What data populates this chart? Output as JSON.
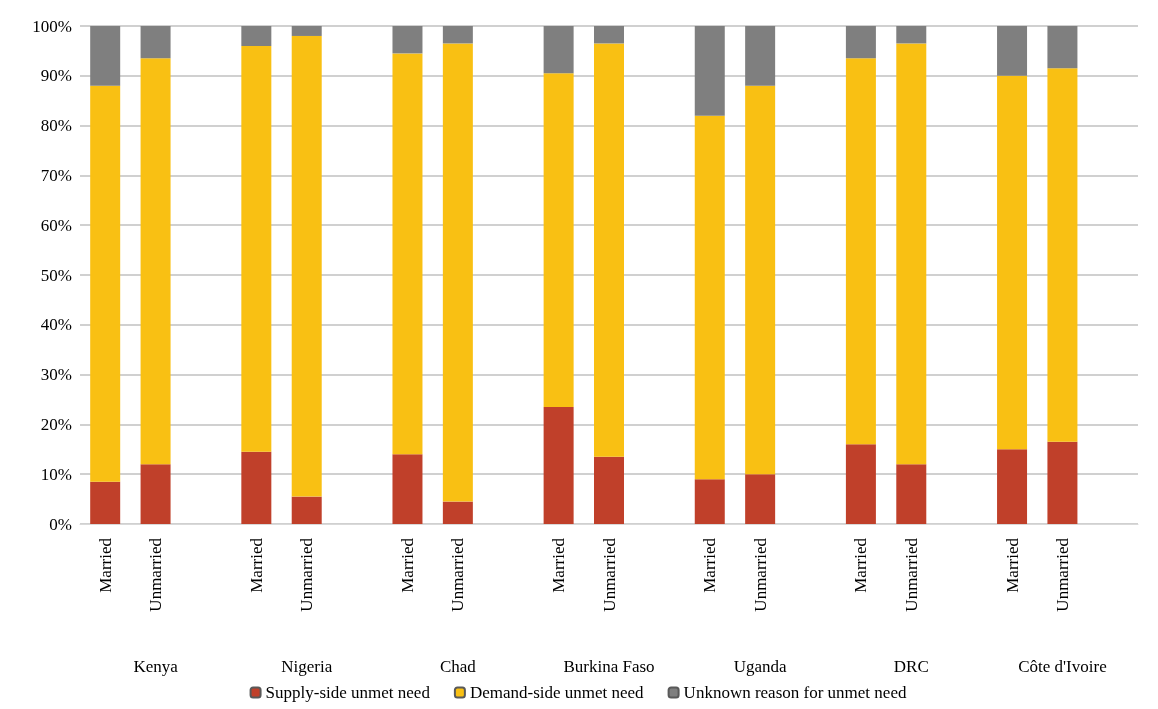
{
  "chart_data": {
    "type": "bar",
    "stacked": true,
    "categories": [
      "Married",
      "Unmarried",
      null,
      "Married",
      "Unmarried",
      null,
      "Married",
      "Unmarried",
      null,
      "Married",
      "Unmarried",
      null,
      "Married",
      "Unmarried",
      null,
      "Married",
      "Unmarried",
      null,
      "Married",
      "Unmarried",
      null
    ],
    "annotations": [
      "Kenya",
      "Nigeria",
      "Chad",
      "Burkina Faso",
      "Uganda",
      "DRC",
      "Côte d'Ivoire"
    ],
    "series": [
      {
        "name": "Supply-side unmet need",
        "color": "#c0402a",
        "values": [
          8.5,
          12,
          null,
          14.5,
          5.5,
          null,
          14,
          4.5,
          null,
          23.5,
          13.5,
          null,
          9,
          10,
          null,
          16,
          12,
          null,
          15,
          16.5,
          null
        ]
      },
      {
        "name": "Demand-side unmet need",
        "color": "#f9c013",
        "values": [
          79.5,
          81.5,
          null,
          81.5,
          92.5,
          null,
          80.5,
          92,
          null,
          67,
          83,
          null,
          73,
          78,
          null,
          77.5,
          84.5,
          null,
          75,
          75,
          null
        ]
      },
      {
        "name": "Unknown reason for unmet need",
        "color": "#7f7f7f",
        "values": [
          12,
          6.5,
          null,
          4,
          2,
          null,
          5.5,
          3.5,
          null,
          9.5,
          3.5,
          null,
          18,
          12,
          null,
          6.5,
          3.5,
          null,
          10,
          8.5,
          null
        ]
      }
    ],
    "ylim": [
      0,
      100
    ],
    "yticks": [
      {
        "value": 0,
        "label": "0%"
      },
      {
        "value": 10,
        "label": "10%"
      },
      {
        "value": 20,
        "label": "20%"
      },
      {
        "value": 30,
        "label": "30%"
      },
      {
        "value": 40,
        "label": "40%"
      },
      {
        "value": 50,
        "label": "50%"
      },
      {
        "value": 60,
        "label": "60%"
      },
      {
        "value": 70,
        "label": "70%"
      },
      {
        "value": 80,
        "label": "80%"
      },
      {
        "value": 90,
        "label": "90%"
      },
      {
        "value": 100,
        "label": "100%"
      }
    ],
    "grid": "y",
    "legend": "bottom"
  }
}
